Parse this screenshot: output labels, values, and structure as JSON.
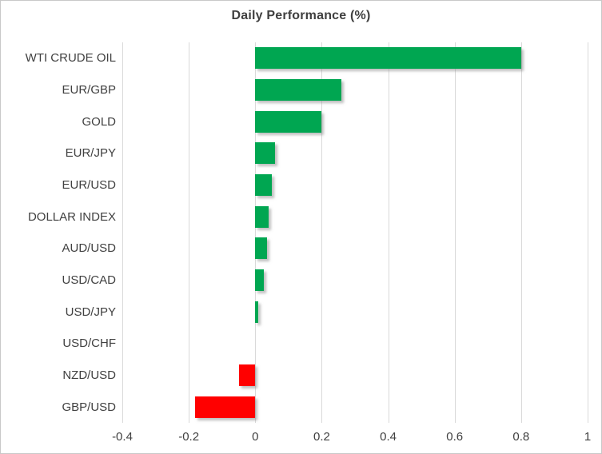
{
  "chart_data": {
    "type": "bar",
    "orientation": "horizontal",
    "title": "Daily Performance (%)",
    "categories": [
      "WTI CRUDE OIL",
      "EUR/GBP",
      "GOLD",
      "EUR/JPY",
      "EUR/USD",
      "DOLLAR INDEX",
      "AUD/USD",
      "USD/CAD",
      "USD/JPY",
      "USD/CHF",
      "NZD/USD",
      "GBP/USD"
    ],
    "values": [
      0.8,
      0.26,
      0.2,
      0.06,
      0.05,
      0.04,
      0.035,
      0.025,
      0.01,
      0.0,
      -0.05,
      -0.18
    ],
    "xlabel": "",
    "ylabel": "",
    "xlim": [
      -0.4,
      1.0
    ],
    "x_ticks": [
      -0.4,
      -0.2,
      0,
      0.2,
      0.4,
      0.6,
      0.8,
      1
    ],
    "x_tick_labels": [
      "-0.4",
      "-0.2",
      "0",
      "0.2",
      "0.4",
      "0.6",
      "0.8",
      "1"
    ],
    "grid": "vertical-gridlines-on",
    "legend": "none",
    "colors": {
      "positive_bar": "#00a651",
      "negative_bar": "#ff0000",
      "gridline": "#d9d9d9",
      "text": "#404040",
      "title_text": "#3f3f3f",
      "frame_border": "#c9c9c9",
      "background": "#ffffff"
    }
  }
}
